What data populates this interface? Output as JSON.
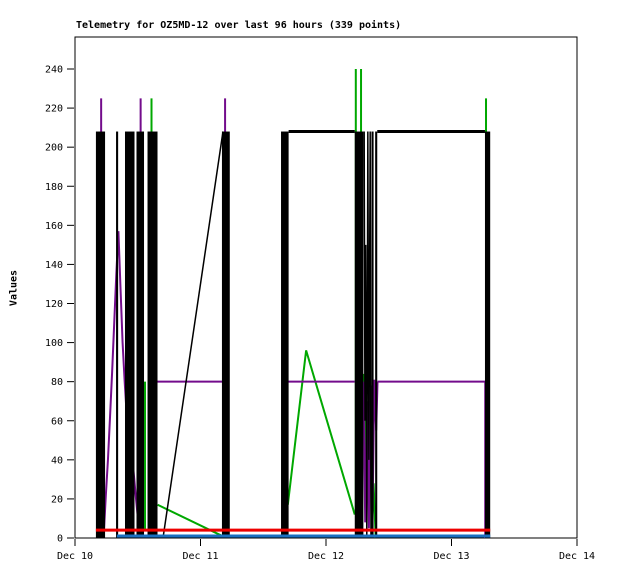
{
  "chart_data": {
    "type": "line",
    "title": "Telemetry for OZ5MD-12 over last 96 hours (339 points)",
    "xlabel": "",
    "ylabel": "Values",
    "x_hours_max": 96,
    "ylim": [
      0,
      257
    ],
    "grid": false,
    "legend": "none",
    "x_ticks": [
      {
        "hour": 0,
        "label": "Dec 10"
      },
      {
        "hour": 24,
        "label": "Dec 11"
      },
      {
        "hour": 48,
        "label": "Dec 12"
      },
      {
        "hour": 72,
        "label": "Dec 13"
      },
      {
        "hour": 96,
        "label": "Dec 14"
      }
    ],
    "y_ticks": [
      0,
      20,
      40,
      60,
      80,
      100,
      120,
      140,
      160,
      180,
      200,
      220,
      240
    ],
    "colors": {
      "axis": "#000000",
      "series_black": "#000000",
      "series_purple": "#730C8C",
      "series_green": "#00A800",
      "series_red": "#EE0000",
      "series_blue": "#1B6FC0"
    },
    "series": [
      {
        "name": "green",
        "color": "#00A800",
        "width": 2,
        "segments": [
          {
            "points": [
              [
                13.39,
                80
              ],
              [
                13.39,
                4
              ]
            ]
          },
          {
            "points": [
              [
                14.63,
                0
              ],
              [
                14.63,
                225
              ]
            ]
          },
          {
            "points": [
              [
                15.8,
                17
              ],
              [
                28.2,
                1
              ]
            ]
          },
          {
            "points": [
              [
                40.7,
                17
              ],
              [
                44.2,
                96
              ],
              [
                53.5,
                12
              ]
            ]
          },
          {
            "points": [
              [
                53.7,
                12
              ],
              [
                53.7,
                240
              ]
            ]
          },
          {
            "points": [
              [
                54.7,
                0
              ],
              [
                54.7,
                240
              ]
            ]
          },
          {
            "points": [
              [
                55.15,
                84
              ],
              [
                55.4,
                40
              ],
              [
                55.7,
                74
              ],
              [
                56.1,
                18
              ],
              [
                56.45,
                60
              ],
              [
                56.8,
                5
              ],
              [
                57.1,
                28
              ],
              [
                57.5,
                0
              ]
            ]
          },
          {
            "points": [
              [
                78.6,
                0
              ],
              [
                78.6,
                225
              ]
            ]
          }
        ]
      },
      {
        "name": "purple",
        "color": "#730C8C",
        "width": 2,
        "segments": [
          {
            "points": [
              [
                5.0,
                0
              ],
              [
                5.0,
                225
              ]
            ]
          },
          {
            "points": [
              [
                5.5,
                2
              ],
              [
                5.9,
                22
              ],
              [
                6.3,
                40
              ],
              [
                6.7,
                62
              ],
              [
                7.1,
                85
              ],
              [
                7.5,
                110
              ],
              [
                7.9,
                135
              ],
              [
                8.3,
                157
              ],
              [
                8.7,
                128
              ],
              [
                9.1,
                100
              ],
              [
                9.5,
                80
              ],
              [
                10.0,
                58
              ],
              [
                10.5,
                44
              ],
              [
                11.0,
                40
              ],
              [
                11.6,
                22
              ],
              [
                12.1,
                8
              ],
              [
                12.55,
                0
              ]
            ]
          },
          {
            "points": [
              [
                12.55,
                0
              ],
              [
                12.55,
                225
              ]
            ]
          },
          {
            "points": [
              [
                15.7,
                80
              ],
              [
                28.15,
                80
              ]
            ]
          },
          {
            "points": [
              [
                28.7,
                0
              ],
              [
                28.7,
                225
              ]
            ]
          },
          {
            "points": [
              [
                39.5,
                80
              ],
              [
                53.5,
                80
              ]
            ]
          },
          {
            "points": [
              [
                55.15,
                80
              ],
              [
                55.5,
                8
              ],
              [
                55.85,
                70
              ],
              [
                56.2,
                5
              ],
              [
                56.55,
                78
              ],
              [
                56.9,
                12
              ],
              [
                57.25,
                81
              ],
              [
                57.6,
                55
              ],
              [
                57.85,
                80
              ]
            ]
          },
          {
            "points": [
              [
                57.85,
                80
              ],
              [
                78.45,
                80
              ],
              [
                78.45,
                0
              ]
            ]
          }
        ]
      },
      {
        "name": "black",
        "color": "#000000",
        "width": 2,
        "bars": [
          [
            4.0,
            5.75,
            208
          ],
          [
            7.85,
            8.25,
            208
          ],
          [
            9.56,
            11.38,
            208
          ],
          [
            11.76,
            13.2,
            208
          ],
          [
            13.87,
            15.78,
            208
          ],
          [
            28.1,
            29.6,
            208
          ],
          [
            39.4,
            40.85,
            208
          ],
          [
            53.5,
            55.15,
            208
          ],
          [
            56.7,
            57.1,
            208
          ],
          [
            57.4,
            57.8,
            208
          ],
          [
            78.4,
            79.4,
            208
          ]
        ],
        "segments": [
          {
            "width": 1.5,
            "points": [
              [
                16.83,
                0
              ],
              [
                28.3,
                208
              ]
            ]
          },
          {
            "width": 3,
            "points": [
              [
                40.85,
                208
              ],
              [
                53.5,
                208
              ]
            ]
          },
          {
            "width": 3,
            "points": [
              [
                57.8,
                208
              ],
              [
                78.4,
                208
              ]
            ]
          },
          {
            "width": 1.5,
            "points": [
              [
                55.3,
                208
              ],
              [
                55.45,
                60
              ],
              [
                55.6,
                150
              ],
              [
                55.8,
                0
              ],
              [
                56.0,
                208
              ],
              [
                56.2,
                40
              ],
              [
                56.45,
                208
              ],
              [
                56.6,
                0
              ]
            ]
          }
        ]
      },
      {
        "name": "red",
        "color": "#EE0000",
        "width": 3,
        "segments": [
          {
            "points": [
              [
                4.0,
                4
              ],
              [
                79.4,
                4
              ]
            ]
          }
        ]
      },
      {
        "name": "blue",
        "color": "#1B6FC0",
        "width": 3,
        "segments": [
          {
            "points": [
              [
                8.0,
                1
              ],
              [
                79.4,
                1
              ]
            ]
          }
        ]
      }
    ]
  }
}
